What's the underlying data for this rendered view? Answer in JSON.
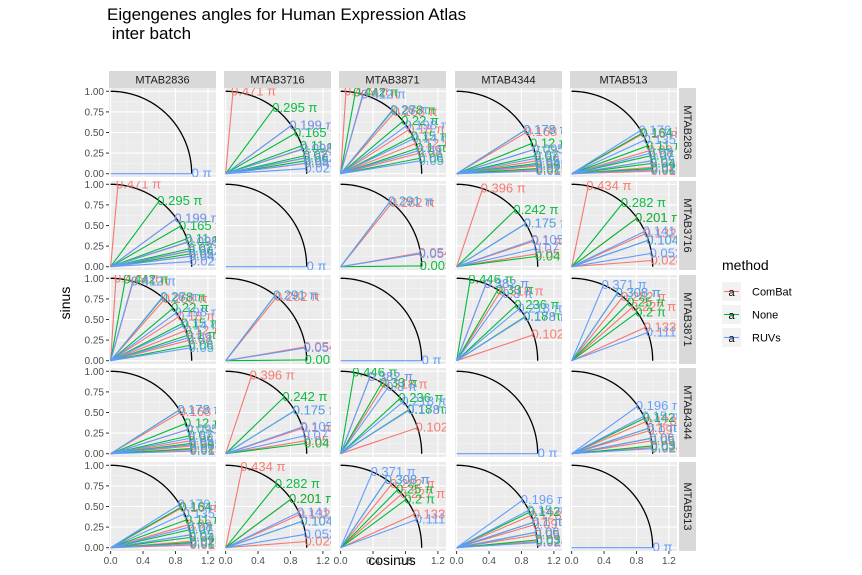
{
  "chart_data": {
    "type": "line",
    "title_line1": "Eigengenes angles for Human Expression Atlas",
    "title_line2": " inter batch",
    "xlabel": "cosinus",
    "ylabel": "sinus",
    "facets": [
      "MTAB2836",
      "MTAB3716",
      "MTAB3871",
      "MTAB4344",
      "MTAB513"
    ],
    "x_ticks": [
      "0.0",
      "0.4",
      "0.8",
      "1.2"
    ],
    "x_tick_values": [
      0.0,
      0.4,
      0.8,
      1.2
    ],
    "y_ticks": [
      "0.00",
      "0.25",
      "0.50",
      "0.75",
      "1.00"
    ],
    "y_tick_values": [
      0.0,
      0.25,
      0.5,
      0.75,
      1.0
    ],
    "xlim": [
      -0.02,
      1.3
    ],
    "ylim": [
      -0.04,
      1.04
    ],
    "legend": {
      "title": "method",
      "placement": "right",
      "entries": [
        {
          "name": "ComBat",
          "color": "#F8766D"
        },
        {
          "name": "None",
          "color": "#00BA38"
        },
        {
          "name": "RUVs",
          "color": "#619CFF"
        }
      ]
    },
    "colors": {
      "ComBat": "#F8766D",
      "None": "#00BA38",
      "RUVs": "#619CFF"
    },
    "background": "#EBEBEB",
    "strip_fill": "#D9D9D9",
    "pair_angles": {
      "MTAB2836|MTAB3716": {
        "ComBat": [
          0.471,
          0.199,
          0.096,
          0.06,
          0.04
        ],
        "None": [
          0.295,
          0.165,
          0.11,
          0.07,
          0.05
        ],
        "RUVs": [
          0.199,
          0.098,
          0.062,
          0.041,
          0.02
        ]
      },
      "MTAB2836|MTAB3871": {
        "ComBat": [
          0.479,
          0.41,
          0.268,
          0.18,
          0.12,
          0.08
        ],
        "None": [
          0.442,
          0.278,
          0.22,
          0.15,
          0.1,
          0.06
        ],
        "RUVs": [
          0.412,
          0.28,
          0.198,
          0.14,
          0.09,
          0.05
        ]
      },
      "MTAB2836|MTAB4344": {
        "ComBat": [
          0.168,
          0.095,
          0.05,
          0.03,
          0.015
        ],
        "None": [
          0.178,
          0.12,
          0.07,
          0.04,
          0.02
        ],
        "RUVs": [
          0.178,
          0.095,
          0.06,
          0.035,
          0.01
        ]
      },
      "MTAB2836|MTAB513": {
        "ComBat": [
          0.16,
          0.09,
          0.05,
          0.025,
          0.01
        ],
        "None": [
          0.164,
          0.11,
          0.07,
          0.04,
          0.02
        ],
        "RUVs": [
          0.176,
          0.135,
          0.08,
          0.05,
          0.015
        ]
      },
      "MTAB3716|MTAB3871": {
        "ComBat": [
          0.282,
          0.054
        ],
        "None": [
          0.291,
          0.003
        ],
        "RUVs": [
          0.291,
          0.05
        ]
      },
      "MTAB3716|MTAB4344": {
        "ComBat": [
          0.396,
          0.1,
          0.05
        ],
        "None": [
          0.242,
          0.175,
          0.04
        ],
        "RUVs": [
          0.175,
          0.105,
          0.07
        ]
      },
      "MTAB3716|MTAB513": {
        "ComBat": [
          0.434,
          0.201,
          0.132,
          0.024
        ],
        "None": [
          0.282,
          0.201,
          0.104
        ],
        "RUVs": [
          0.141,
          0.104,
          0.052
        ]
      },
      "MTAB3871|MTAB4344": {
        "ComBat": [
          0.382,
          0.318,
          0.178,
          0.102
        ],
        "None": [
          0.446,
          0.33,
          0.236,
          0.18
        ],
        "RUVs": [
          0.382,
          0.3,
          0.218,
          0.178
        ]
      },
      "MTAB3871|MTAB513": {
        "ComBat": [
          0.282,
          0.227,
          0.133
        ],
        "None": [
          0.308,
          0.25,
          0.2
        ],
        "RUVs": [
          0.371,
          0.308,
          0.111
        ]
      },
      "MTAB4344|MTAB513": {
        "ComBat": [
          0.128,
          0.09,
          0.05,
          0.024
        ],
        "None": [
          0.142,
          0.1,
          0.06,
          0.03
        ],
        "RUVs": [
          0.196,
          0.15,
          0.1,
          0.06,
          0.02
        ]
      }
    }
  }
}
